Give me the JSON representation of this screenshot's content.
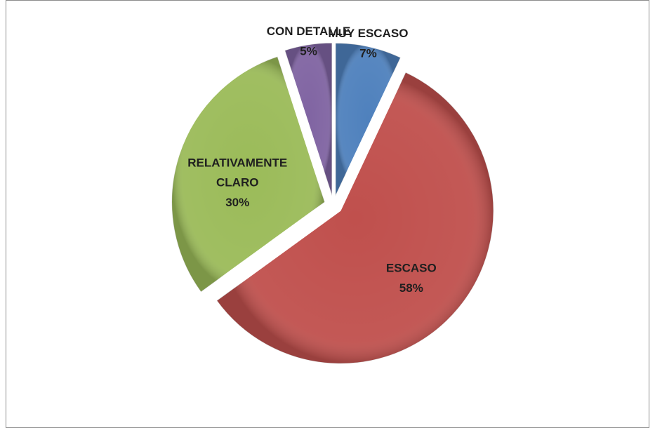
{
  "chart_data": {
    "type": "pie",
    "categories": [
      "MUY ESCASO",
      "ESCASO",
      "RELATIVAMENTE CLARO",
      "CON DETALLE"
    ],
    "values": [
      7,
      58,
      30,
      5
    ],
    "value_labels": [
      "7%",
      "58%",
      "30%",
      "5%"
    ],
    "colors": [
      "#4f81bd",
      "#c0504d",
      "#9bbb59",
      "#8064a2"
    ]
  }
}
